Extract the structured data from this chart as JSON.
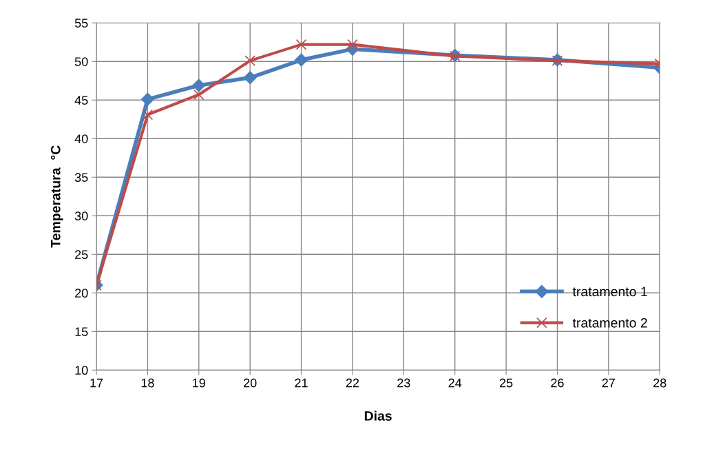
{
  "chart_data": {
    "type": "line",
    "xlabel": "Dias",
    "ylabel": "Temperatura  °C",
    "xlim": [
      17,
      28
    ],
    "xticks": [
      17,
      18,
      19,
      20,
      21,
      22,
      23,
      24,
      25,
      26,
      27,
      28
    ],
    "ylim": [
      10,
      55
    ],
    "yticks": [
      10,
      15,
      20,
      25,
      30,
      35,
      40,
      45,
      50,
      55
    ],
    "grid": true,
    "legend": "bottom right",
    "line_style": "solid",
    "series": [
      {
        "name": "tratamento 1",
        "color": "#4a7ebb",
        "marker": "diamond",
        "x": [
          17,
          18,
          19,
          20,
          21,
          22,
          24,
          26,
          28
        ],
        "values": [
          21,
          45.1,
          46.9,
          47.9,
          50.2,
          51.6,
          50.8,
          50.2,
          49.2
        ]
      },
      {
        "name": "tratamento 2",
        "color": "#be4b48",
        "marker": "cross",
        "x": [
          17,
          18,
          19,
          20,
          21,
          22,
          24,
          26,
          28
        ],
        "values": [
          21,
          43.1,
          45.7,
          50.1,
          52.2,
          52.2,
          50.7,
          50.1,
          49.7
        ]
      }
    ]
  }
}
